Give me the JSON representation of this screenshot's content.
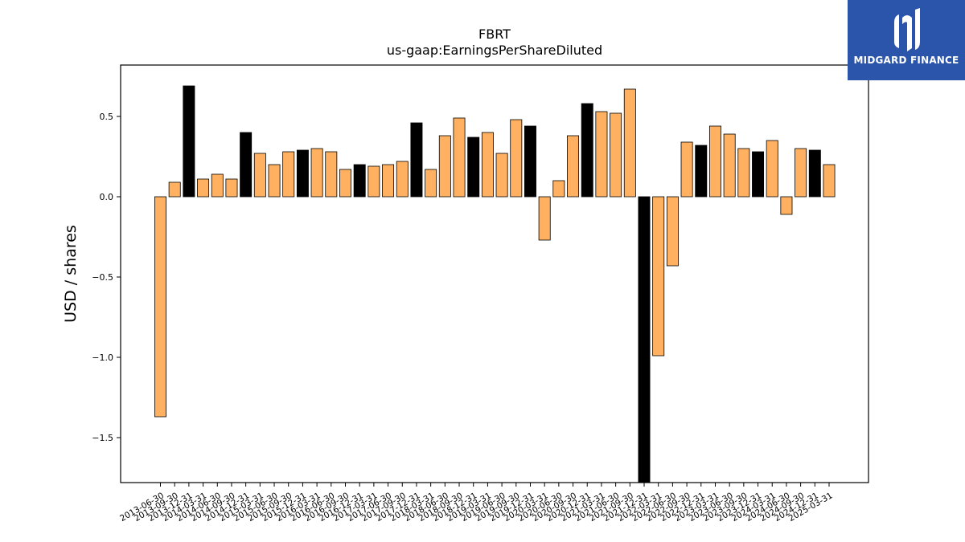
{
  "chart_data": {
    "type": "bar",
    "title": "FBRT",
    "subtitle": "us-gaap:EarningsPerShareDiluted",
    "ylabel": "USD / shares",
    "xlabel": "",
    "ylim": [
      -1.78,
      0.82
    ],
    "yticks": [
      -1.5,
      -1.0,
      -0.5,
      0.0,
      0.5
    ],
    "ytick_labels": [
      "−1.5",
      "−1.0",
      "−0.5",
      "0.0",
      "0.5"
    ],
    "categories": [
      "2013-06-30",
      "2013-09-30",
      "2013-12-31",
      "2014-03-31",
      "2014-06-30",
      "2014-09-30",
      "2014-12-31",
      "2015-03-31",
      "2015-06-30",
      "2015-09-30",
      "2015-12-31",
      "2016-03-31",
      "2016-06-30",
      "2016-09-30",
      "2016-12-31",
      "2017-03-31",
      "2017-06-30",
      "2017-09-30",
      "2017-12-31",
      "2018-03-31",
      "2018-06-30",
      "2018-09-30",
      "2018-12-31",
      "2019-03-31",
      "2019-06-30",
      "2019-09-30",
      "2019-12-31",
      "2020-03-31",
      "2020-06-30",
      "2020-09-30",
      "2020-12-31",
      "2021-03-31",
      "2021-06-30",
      "2021-09-30",
      "2021-12-31",
      "2022-03-31",
      "2022-06-30",
      "2022-09-30",
      "2022-12-31",
      "2023-03-31",
      "2023-06-30",
      "2023-09-30",
      "2023-12-31",
      "2024-03-31",
      "2024-06-30",
      "2024-09-30",
      "2024-12-31",
      "2025-03-31"
    ],
    "values": [
      -1.37,
      0.09,
      0.69,
      0.11,
      0.14,
      0.11,
      0.4,
      0.27,
      0.2,
      0.28,
      0.29,
      0.3,
      0.28,
      0.17,
      0.2,
      0.19,
      0.2,
      0.22,
      0.46,
      0.17,
      0.38,
      0.49,
      0.37,
      0.4,
      0.27,
      0.48,
      0.44,
      -0.27,
      0.1,
      0.38,
      0.58,
      0.53,
      0.52,
      0.67,
      -1.8,
      -0.99,
      -0.43,
      0.34,
      0.32,
      0.44,
      0.39,
      0.3,
      0.28,
      0.35,
      -0.11,
      0.3,
      0.29,
      0.2
    ],
    "highlight": [
      false,
      false,
      true,
      false,
      false,
      false,
      true,
      false,
      false,
      false,
      true,
      false,
      false,
      false,
      true,
      false,
      false,
      false,
      true,
      false,
      false,
      false,
      true,
      false,
      false,
      false,
      true,
      false,
      false,
      false,
      true,
      false,
      false,
      false,
      true,
      false,
      false,
      false,
      true,
      false,
      false,
      false,
      true,
      false,
      false,
      false,
      true,
      false
    ],
    "colors": {
      "bar": "#ffb060",
      "highlight": "#000000",
      "edge": "#000000"
    },
    "grid": false,
    "legend": "none"
  },
  "logo": {
    "text": "MIDGARD FINANCE",
    "background": "#2a55aa",
    "icon": "midgard-logo-icon"
  }
}
